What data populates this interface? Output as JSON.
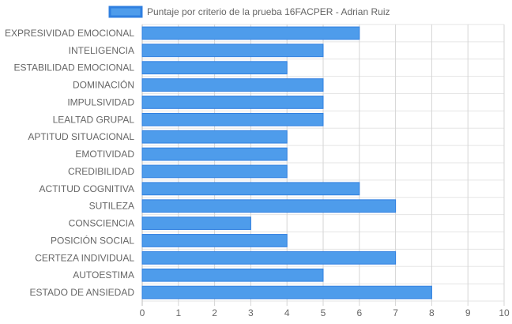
{
  "chart_data": {
    "type": "bar",
    "orientation": "horizontal",
    "categories": [
      "EXPRESIVIDAD EMOCIONAL",
      "INTELIGENCIA",
      "ESTABILIDAD EMOCIONAL",
      "DOMINACIÓN",
      "IMPULSIVIDAD",
      "LEALTAD GRUPAL",
      "APTITUD SITUACIONAL",
      "EMOTIVIDAD",
      "CREDIBILIDAD",
      "ACTITUD COGNITIVA",
      "SUTILEZA",
      "CONSCIENCIA",
      "POSICIÓN SOCIAL",
      "CERTEZA INDIVIDUAL",
      "AUTOESTIMA",
      "ESTADO DE ANSIEDAD"
    ],
    "series": [
      {
        "name": "Puntaje por criterio de la prueba 16FACPER - Adrian Ruiz",
        "values": [
          6,
          5,
          4,
          5,
          5,
          5,
          4,
          4,
          4,
          6,
          7,
          3,
          4,
          7,
          5,
          8
        ],
        "color": "#4e9ceb",
        "border_color": "#2f7fe0"
      }
    ],
    "xlim": [
      0,
      10
    ],
    "xticks": [
      "0",
      "1",
      "2",
      "3",
      "4",
      "5",
      "6",
      "7",
      "8",
      "9",
      "10"
    ],
    "grid": true,
    "legend": "top-center"
  }
}
